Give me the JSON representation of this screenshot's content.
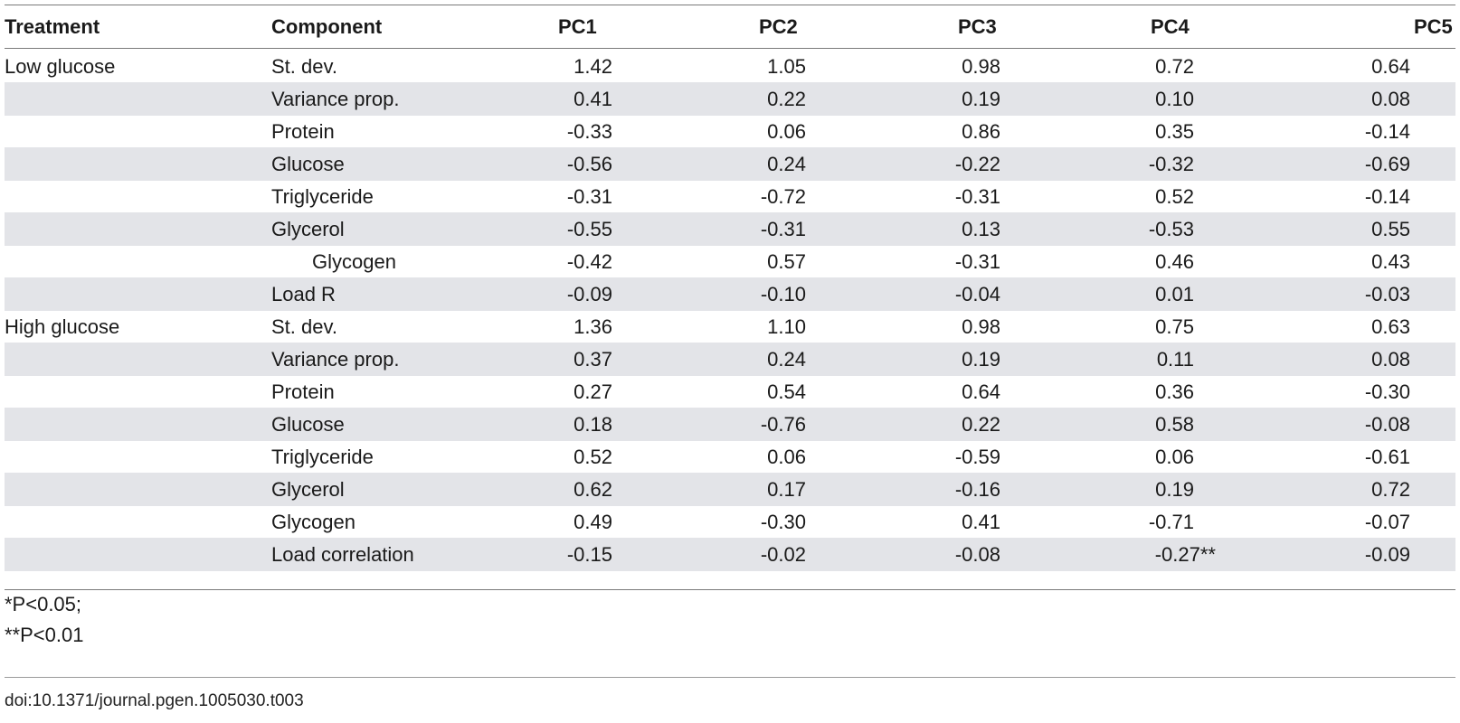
{
  "table": {
    "headers": {
      "treatment": "Treatment",
      "component": "Component",
      "pc1": "PC1",
      "pc2": "PC2",
      "pc3": "PC3",
      "pc4": "PC4",
      "pc5": "PC5"
    },
    "rows": [
      {
        "treatment": "Low glucose",
        "component": "St. dev.",
        "indent": false,
        "v": [
          "1.42",
          "1.05",
          "0.98",
          "0.72",
          "0.64"
        ]
      },
      {
        "treatment": "",
        "component": "Variance prop.",
        "indent": false,
        "v": [
          "0.41",
          "0.22",
          "0.19",
          "0.10",
          "0.08"
        ]
      },
      {
        "treatment": "",
        "component": "Protein",
        "indent": false,
        "v": [
          "-0.33",
          "0.06",
          "0.86",
          "0.35",
          "-0.14"
        ]
      },
      {
        "treatment": "",
        "component": "Glucose",
        "indent": false,
        "v": [
          "-0.56",
          "0.24",
          "-0.22",
          "-0.32",
          "-0.69"
        ]
      },
      {
        "treatment": "",
        "component": "Triglyceride",
        "indent": false,
        "v": [
          "-0.31",
          "-0.72",
          "-0.31",
          "0.52",
          "-0.14"
        ]
      },
      {
        "treatment": "",
        "component": "Glycerol",
        "indent": false,
        "v": [
          "-0.55",
          "-0.31",
          "0.13",
          "-0.53",
          "0.55"
        ]
      },
      {
        "treatment": "",
        "component": "Glycogen",
        "indent": true,
        "v": [
          "-0.42",
          "0.57",
          "-0.31",
          "0.46",
          "0.43"
        ]
      },
      {
        "treatment": "",
        "component": "Load R",
        "indent": false,
        "v": [
          "-0.09",
          "-0.10",
          "-0.04",
          "0.01",
          "-0.03"
        ]
      },
      {
        "treatment": "High glucose",
        "component": "St. dev.",
        "indent": false,
        "v": [
          "1.36",
          "1.10",
          "0.98",
          "0.75",
          "0.63"
        ]
      },
      {
        "treatment": "",
        "component": "Variance prop.",
        "indent": false,
        "v": [
          "0.37",
          "0.24",
          "0.19",
          "0.11",
          "0.08"
        ]
      },
      {
        "treatment": "",
        "component": "Protein",
        "indent": false,
        "v": [
          "0.27",
          "0.54",
          "0.64",
          "0.36",
          "-0.30"
        ]
      },
      {
        "treatment": "",
        "component": "Glucose",
        "indent": false,
        "v": [
          "0.18",
          "-0.76",
          "0.22",
          "0.58",
          "-0.08"
        ]
      },
      {
        "treatment": "",
        "component": "Triglyceride",
        "indent": false,
        "v": [
          "0.52",
          "0.06",
          "-0.59",
          "0.06",
          "-0.61"
        ]
      },
      {
        "treatment": "",
        "component": "Glycerol",
        "indent": false,
        "v": [
          "0.62",
          "0.17",
          "-0.16",
          "0.19",
          "0.72"
        ]
      },
      {
        "treatment": "",
        "component": "Glycogen",
        "indent": false,
        "v": [
          "0.49",
          "-0.30",
          "0.41",
          "-0.71",
          "-0.07"
        ]
      },
      {
        "treatment": "",
        "component": "Load correlation",
        "indent": false,
        "v": [
          "-0.15",
          "-0.02",
          "-0.08",
          "-0.27**",
          "-0.09"
        ]
      }
    ]
  },
  "footnotes": {
    "note1": "*P<0.05;",
    "note2": "**P<0.01"
  },
  "doi": "doi:10.1371/journal.pgen.1005030.t003",
  "colors": {
    "row_shade": "#e3e4e8",
    "rule": "#7a7a7a"
  }
}
